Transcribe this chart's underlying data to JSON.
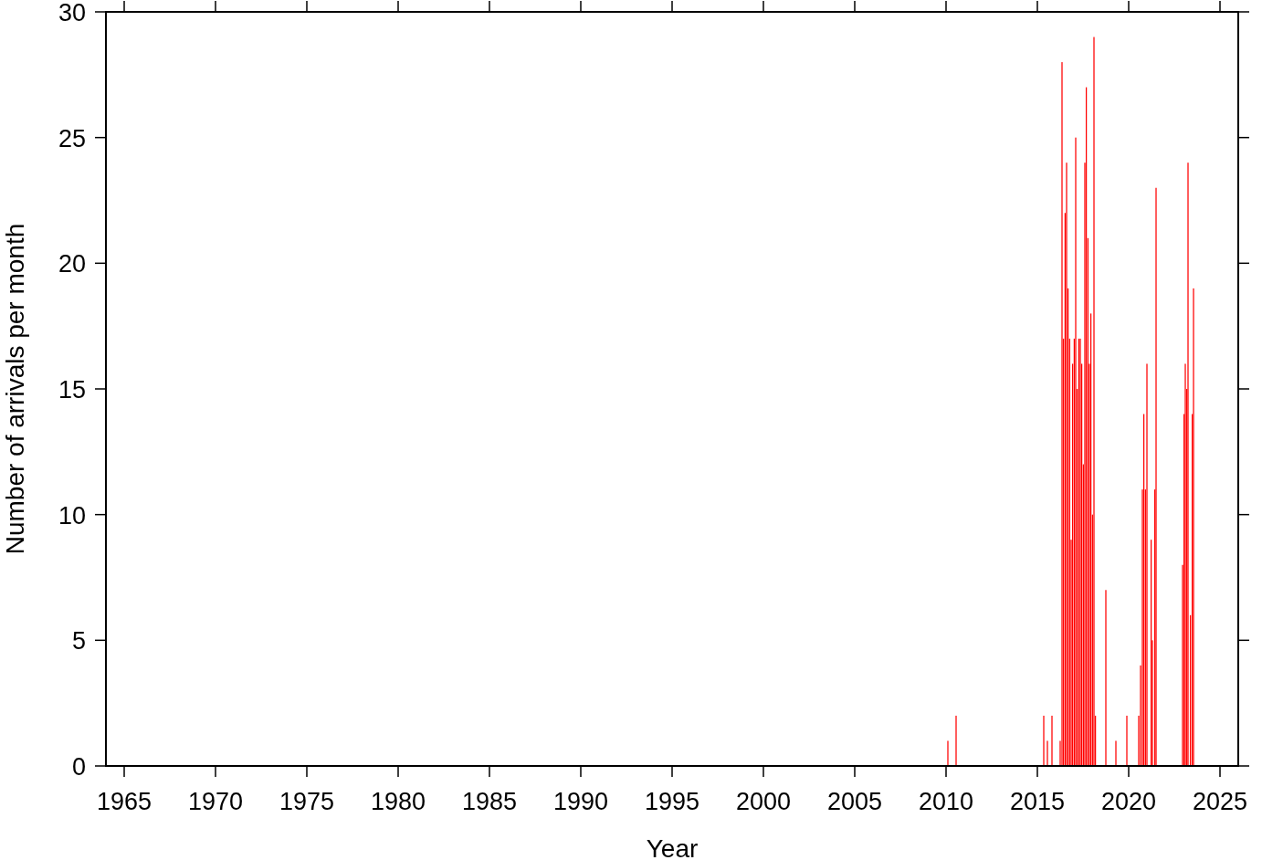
{
  "chart_data": {
    "type": "bar",
    "xlabel": "Year",
    "ylabel": "Number of arrivals per month",
    "x": [
      2010.1,
      2010.55,
      2015.35,
      2015.55,
      2015.8,
      2016.25,
      2016.35,
      2016.43,
      2016.52,
      2016.6,
      2016.68,
      2016.77,
      2016.85,
      2016.93,
      2017.02,
      2017.1,
      2017.18,
      2017.27,
      2017.35,
      2017.43,
      2017.52,
      2017.6,
      2017.68,
      2017.77,
      2017.85,
      2017.93,
      2018.02,
      2018.1,
      2018.18,
      2018.75,
      2019.3,
      2019.9,
      2020.55,
      2020.65,
      2020.75,
      2020.83,
      2020.92,
      2021.0,
      2021.23,
      2021.3,
      2021.43,
      2021.5,
      2022.95,
      2023.03,
      2023.1,
      2023.18,
      2023.25,
      2023.38,
      2023.48,
      2023.55
    ],
    "values": [
      1,
      2,
      2,
      1,
      2,
      1,
      28,
      17,
      22,
      24,
      19,
      17,
      9,
      16,
      17,
      25,
      15,
      17,
      17,
      16,
      12,
      24,
      27,
      21,
      16,
      18,
      10,
      29,
      2,
      7,
      1,
      2,
      2,
      4,
      11,
      14,
      11,
      16,
      9,
      5,
      11,
      23,
      8,
      14,
      16,
      15,
      24,
      6,
      14,
      19
    ],
    "color": "#ff0000",
    "xlim": [
      1964,
      2026
    ],
    "xticks": [
      1965,
      1970,
      1975,
      1980,
      1985,
      1990,
      1995,
      2000,
      2005,
      2010,
      2015,
      2020,
      2025
    ],
    "ylim": [
      0,
      30
    ],
    "yticks": [
      0,
      5,
      10,
      15,
      20,
      25,
      30
    ],
    "grid": false
  }
}
